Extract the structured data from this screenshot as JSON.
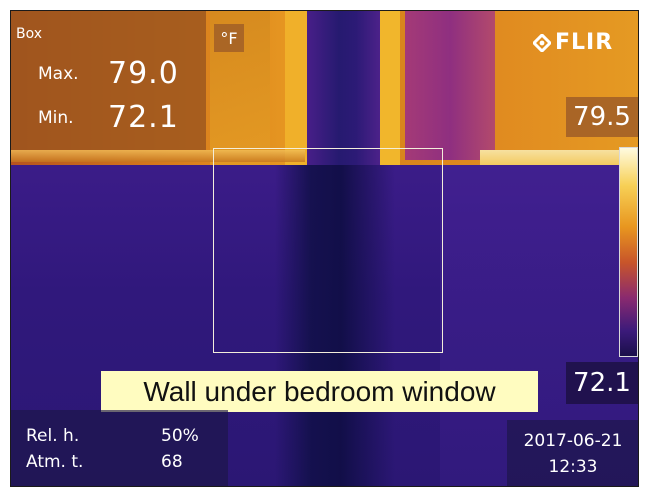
{
  "measurement": {
    "box_label": "Box",
    "max_label": "Max.",
    "max_value": "79.0",
    "min_label": "Min.",
    "min_value": "72.1"
  },
  "unit": "°F",
  "brand": {
    "name": "FLIR",
    "icon": "flir-logo-icon"
  },
  "scale": {
    "max": "79.5",
    "min": "72.1"
  },
  "caption": "Wall under bedroom window",
  "parameters": {
    "rel_h_label": "Rel. h.",
    "rel_h_value": "50%",
    "atm_t_label": "Atm. t.",
    "atm_t_value": "68"
  },
  "datetime": {
    "date": "2017-06-21",
    "time": "12:33"
  },
  "colors": {
    "caption_bg": "#fffcc0",
    "roi_box": "#f3eedb",
    "wall_cool": "#2b1774",
    "window_warm": "#e89a22"
  }
}
